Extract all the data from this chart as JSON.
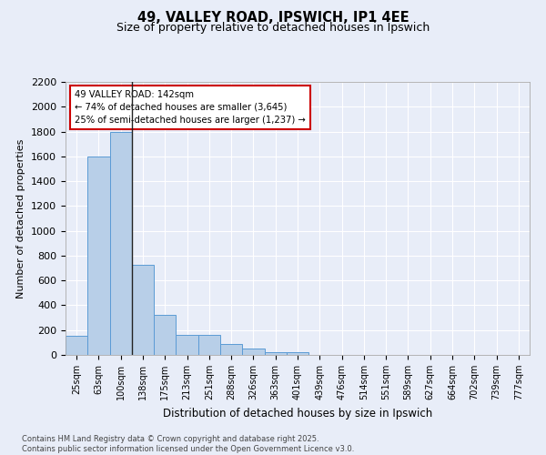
{
  "title_line1": "49, VALLEY ROAD, IPSWICH, IP1 4EE",
  "title_line2": "Size of property relative to detached houses in Ipswich",
  "xlabel": "Distribution of detached houses by size in Ipswich",
  "ylabel": "Number of detached properties",
  "categories": [
    "25sqm",
    "63sqm",
    "100sqm",
    "138sqm",
    "175sqm",
    "213sqm",
    "251sqm",
    "288sqm",
    "326sqm",
    "363sqm",
    "401sqm",
    "439sqm",
    "476sqm",
    "514sqm",
    "551sqm",
    "589sqm",
    "627sqm",
    "664sqm",
    "702sqm",
    "739sqm",
    "777sqm"
  ],
  "values": [
    155,
    1600,
    1800,
    725,
    320,
    160,
    160,
    85,
    50,
    25,
    20,
    0,
    0,
    0,
    0,
    0,
    0,
    0,
    0,
    0,
    0
  ],
  "bar_color": "#b8cfe8",
  "bar_edge_color": "#5b9bd5",
  "background_color": "#e8edf8",
  "grid_color": "#ffffff",
  "annotation_text": "49 VALLEY ROAD: 142sqm\n← 74% of detached houses are smaller (3,645)\n25% of semi-detached houses are larger (1,237) →",
  "annotation_box_color": "#ffffff",
  "annotation_box_edge": "#cc0000",
  "vline_x_index": 2.5,
  "ylim": [
    0,
    2200
  ],
  "yticks": [
    0,
    200,
    400,
    600,
    800,
    1000,
    1200,
    1400,
    1600,
    1800,
    2000,
    2200
  ],
  "footer_line1": "Contains HM Land Registry data © Crown copyright and database right 2025.",
  "footer_line2": "Contains public sector information licensed under the Open Government Licence v3.0."
}
